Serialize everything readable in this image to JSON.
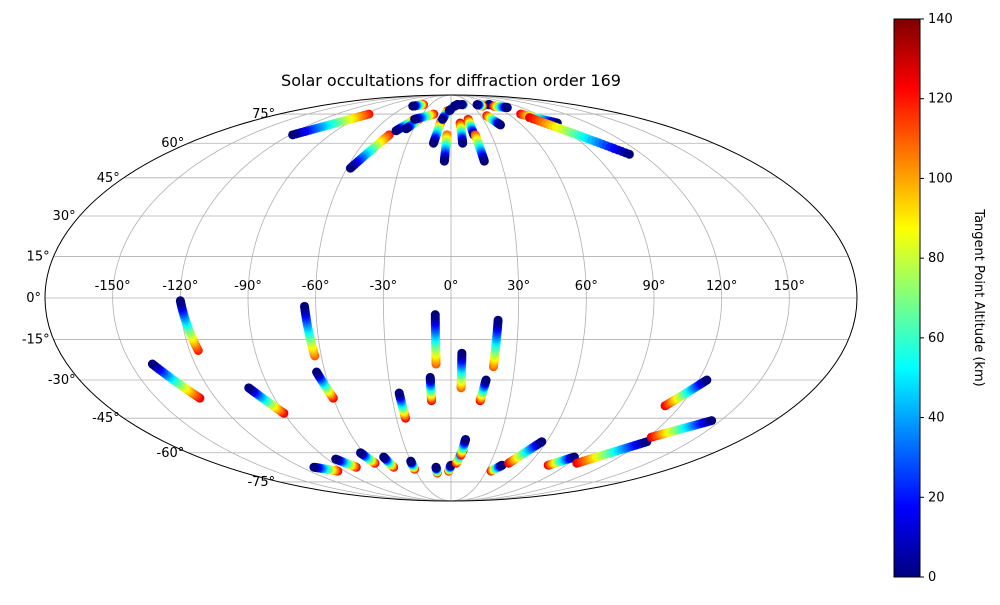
{
  "chart_data": {
    "type": "scatter",
    "projection": "mollweide",
    "title": "Solar occultations for diffraction order 169",
    "grid": true,
    "x_ticks": [
      "-150°",
      "-120°",
      "-90°",
      "-60°",
      "-30°",
      "0°",
      "30°",
      "60°",
      "90°",
      "120°",
      "150°"
    ],
    "x_tick_values": [
      -150,
      -120,
      -90,
      -60,
      -30,
      0,
      30,
      60,
      90,
      120,
      150
    ],
    "y_ticks": [
      "75°",
      "60°",
      "45°",
      "30°",
      "15°",
      "0°",
      "-15°",
      "-30°",
      "-45°",
      "-60°",
      "-75°"
    ],
    "y_tick_values": [
      75,
      60,
      45,
      30,
      15,
      0,
      -15,
      -30,
      -45,
      -60,
      -75
    ],
    "xlim": [
      -180,
      180
    ],
    "ylim": [
      -90,
      90
    ],
    "colorbar": {
      "label": "Tangent Point Altitude (km)",
      "min": 0,
      "max": 140,
      "ticks": [
        "0",
        "20",
        "40",
        "60",
        "80",
        "100",
        "120",
        "140"
      ],
      "tick_values": [
        0,
        20,
        40,
        60,
        80,
        100,
        120,
        140
      ],
      "colormap": "jet",
      "placement": "right"
    },
    "tracks": [
      {
        "lon_start": -118,
        "lat_start": 64,
        "lon_end": -86,
        "lat_end": 75,
        "alt_start": 0,
        "alt_end": 120
      },
      {
        "lon_start": -58,
        "lat_start": 49,
        "lon_end": -46,
        "lat_end": 64,
        "alt_start": 0,
        "alt_end": 120
      },
      {
        "lon_start": -43,
        "lat_start": 66,
        "lon_end": -34,
        "lat_end": 72,
        "alt_start": 0,
        "alt_end": 125
      },
      {
        "lon_start": -36,
        "lat_start": 67,
        "lon_end": -30,
        "lat_end": 72,
        "alt_start": 0,
        "alt_end": 125
      },
      {
        "lon_start": -34,
        "lat_start": 72,
        "lon_end": -18,
        "lat_end": 75,
        "alt_start": 0,
        "alt_end": 125
      },
      {
        "lon_start": -52,
        "lat_start": 80,
        "lon_end": -40,
        "lat_end": 81,
        "alt_start": 0,
        "alt_end": 125
      },
      {
        "lon_start": -12,
        "lat_start": 60,
        "lon_end": -9,
        "lat_end": 71,
        "alt_start": 0,
        "alt_end": 125
      },
      {
        "lon_start": -4,
        "lat_start": 52,
        "lon_end": -3,
        "lat_end": 64,
        "alt_start": 0,
        "alt_end": 110
      },
      {
        "lon_start": -8,
        "lat_start": 72,
        "lon_end": -4,
        "lat_end": 77,
        "alt_start": 0,
        "alt_end": 125
      },
      {
        "lon_start": -2,
        "lat_start": 77,
        "lon_end": 4,
        "lat_end": 80,
        "alt_start": 0,
        "alt_end": 125
      },
      {
        "lon_start": 5,
        "lat_start": 80,
        "lon_end": 9,
        "lat_end": 81,
        "alt_start": 0,
        "alt_end": 125
      },
      {
        "lon_start": 9,
        "lat_start": 81,
        "lon_end": 14,
        "lat_end": 81,
        "alt_start": 0,
        "alt_end": 125
      },
      {
        "lon_start": 16,
        "lat_start": 81,
        "lon_end": 18,
        "lat_end": 81,
        "alt_start": 0,
        "alt_end": 125
      },
      {
        "lon_start": 8,
        "lat_start": 60,
        "lon_end": 8,
        "lat_end": 70,
        "alt_start": 0,
        "alt_end": 125
      },
      {
        "lon_start": 17,
        "lat_start": 64,
        "lon_end": 16,
        "lat_end": 72,
        "alt_start": 0,
        "alt_end": 125
      },
      {
        "lon_start": 20,
        "lat_start": 52,
        "lon_end": 18,
        "lat_end": 64,
        "alt_start": 0,
        "alt_end": 115
      },
      {
        "lon_start": 42,
        "lat_start": 69,
        "lon_end": 36,
        "lat_end": 74,
        "alt_start": 0,
        "alt_end": 125
      },
      {
        "lon_start": 56,
        "lat_start": 81,
        "lon_end": 52,
        "lat_end": 81,
        "alt_start": 0,
        "alt_end": 125
      },
      {
        "lon_start": 38,
        "lat_start": 81,
        "lon_end": 43,
        "lat_end": 80,
        "alt_start": 0,
        "alt_end": 125
      },
      {
        "lon_start": 93,
        "lat_start": 70,
        "lon_end": 73,
        "lat_end": 75,
        "alt_start": 0,
        "alt_end": 125
      },
      {
        "lon_start": 112,
        "lat_start": 55,
        "lon_end": 76,
        "lat_end": 73,
        "alt_start": 0,
        "alt_end": 125
      },
      {
        "lon_start": 72,
        "lat_start": 79,
        "lon_end": 58,
        "lat_end": 80,
        "alt_start": 0,
        "alt_end": 125
      },
      {
        "lon_start": -120,
        "lat_start": -1,
        "lon_end": -116,
        "lat_end": -19,
        "alt_start": 0,
        "alt_end": 120
      },
      {
        "lon_start": -140,
        "lat_start": -24,
        "lon_end": -128,
        "lat_end": -37,
        "alt_start": 0,
        "alt_end": 125
      },
      {
        "lon_start": -100,
        "lat_start": -33,
        "lon_end": -90,
        "lat_end": -43,
        "alt_start": 0,
        "alt_end": 125
      },
      {
        "lon_start": -65,
        "lat_start": -3,
        "lon_end": -63,
        "lat_end": -21,
        "alt_start": 0,
        "alt_end": 110
      },
      {
        "lon_start": -64,
        "lat_start": -27,
        "lon_end": -60,
        "lat_end": -37,
        "alt_start": 0,
        "alt_end": 125
      },
      {
        "lon_start": -26,
        "lat_start": -35,
        "lon_end": -25,
        "lat_end": -45,
        "alt_start": 0,
        "alt_end": 125
      },
      {
        "lon_start": -10,
        "lat_start": -29,
        "lon_end": -10,
        "lat_end": -38,
        "alt_start": 0,
        "alt_end": 125
      },
      {
        "lon_start": -7,
        "lat_start": -6,
        "lon_end": -7,
        "lat_end": -24,
        "alt_start": 0,
        "alt_end": 110
      },
      {
        "lon_start": 5,
        "lat_start": -20,
        "lon_end": 5,
        "lat_end": -33,
        "alt_start": 0,
        "alt_end": 110
      },
      {
        "lon_start": 17,
        "lat_start": -30,
        "lon_end": 15,
        "lat_end": -38,
        "alt_start": 0,
        "alt_end": 125
      },
      {
        "lon_start": 21,
        "lat_start": -8,
        "lon_end": 20,
        "lat_end": -25,
        "alt_start": 0,
        "alt_end": 110
      },
      {
        "lon_start": -110,
        "lat_start": -67,
        "lon_end": -96,
        "lat_end": -69,
        "alt_start": 0,
        "alt_end": 125
      },
      {
        "lon_start": -84,
        "lat_start": -63,
        "lon_end": -76,
        "lat_end": -67,
        "alt_start": 0,
        "alt_end": 125
      },
      {
        "lon_start": -62,
        "lat_start": -60,
        "lon_end": -58,
        "lat_end": -65,
        "alt_start": 0,
        "alt_end": 125
      },
      {
        "lon_start": -48,
        "lat_start": -62,
        "lon_end": -46,
        "lat_end": -67,
        "alt_start": 0,
        "alt_end": 125
      },
      {
        "lon_start": -30,
        "lat_start": -64,
        "lon_end": -30,
        "lat_end": -68,
        "alt_start": 0,
        "alt_end": 125
      },
      {
        "lon_start": -12,
        "lat_start": -67,
        "lon_end": -12,
        "lat_end": -70,
        "alt_start": 0,
        "alt_end": 125
      },
      {
        "lon_start": 0,
        "lat_start": -66,
        "lon_end": -2,
        "lat_end": -69,
        "alt_start": 0,
        "alt_end": 125
      },
      {
        "lon_start": 8,
        "lat_start": -59,
        "lon_end": 4,
        "lat_end": -65,
        "alt_start": 0,
        "alt_end": 125
      },
      {
        "lon_start": 9,
        "lat_start": -54,
        "lon_end": 7,
        "lat_end": -61,
        "alt_start": 0,
        "alt_end": 125
      },
      {
        "lon_start": 40,
        "lat_start": -66,
        "lon_end": 34,
        "lat_end": -69,
        "alt_start": 0,
        "alt_end": 125
      },
      {
        "lon_start": 57,
        "lat_start": -55,
        "lon_end": 44,
        "lat_end": -65,
        "alt_start": 0,
        "alt_end": 125
      },
      {
        "lon_start": 88,
        "lat_start": -62,
        "lon_end": 76,
        "lat_end": -66,
        "alt_start": 0,
        "alt_end": 125
      },
      {
        "lon_start": 123,
        "lat_start": -55,
        "lon_end": 96,
        "lat_end": -65,
        "alt_start": 0,
        "alt_end": 125
      },
      {
        "lon_start": 145,
        "lat_start": -46,
        "lon_end": 122,
        "lat_end": -53,
        "alt_start": 0,
        "alt_end": 125
      },
      {
        "lon_start": 124,
        "lat_start": -30,
        "lon_end": 112,
        "lat_end": -40,
        "alt_start": 0,
        "alt_end": 125
      }
    ]
  }
}
